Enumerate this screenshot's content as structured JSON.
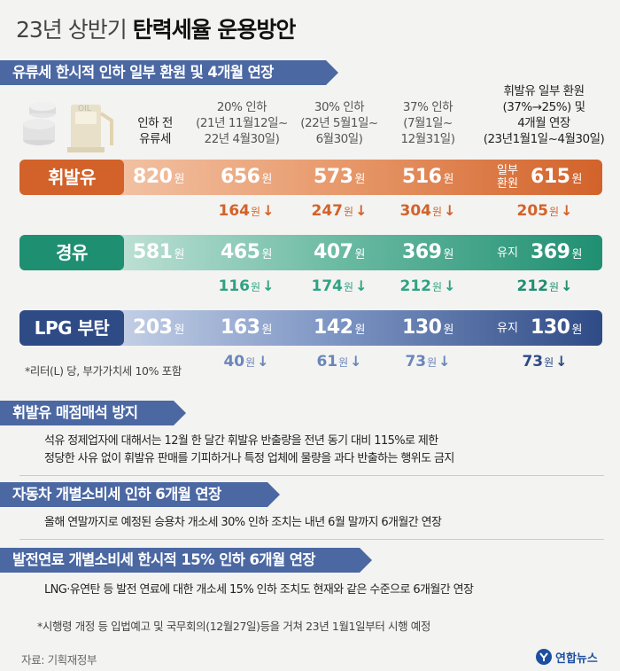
{
  "title": {
    "light": "23년 상반기",
    "bold": "탄력세율 운용방안"
  },
  "section1": {
    "heading": "유류세 한시적 인하 일부 환원 및 4개월 연장"
  },
  "columns": {
    "base": [
      "인하 전",
      "유류세"
    ],
    "c1": [
      "20% 인하",
      "(21년 11월12일~",
      "22년 4월30일)"
    ],
    "c2": [
      "30% 인하",
      "(22년 5월1일~",
      "6월30일)"
    ],
    "c3": [
      "37% 인하",
      "(7월1일~",
      "12월31일)"
    ],
    "c4": [
      "휘발유 일부 환원",
      "(37%→25%) 및",
      "4개월 연장",
      "(23년1월1일~4월30일)"
    ]
  },
  "unit": "원",
  "arrow": "↓",
  "rows": [
    {
      "name": "휘발유",
      "base": "820",
      "c1": "656",
      "c2": "573",
      "c3": "516",
      "c4_pre": [
        "일부",
        "환원"
      ],
      "c4": "615",
      "d1": "164",
      "d2": "247",
      "d3": "304",
      "d4": "205"
    },
    {
      "name": "경유",
      "base": "581",
      "c1": "465",
      "c2": "407",
      "c3": "369",
      "c4_pre": [
        "유지"
      ],
      "c4": "369",
      "d1": "116",
      "d2": "174",
      "d3": "212",
      "d4": "212"
    },
    {
      "name": "LPG 부탄",
      "base": "203",
      "c1": "163",
      "c2": "142",
      "c3": "130",
      "c4_pre": [
        "유지"
      ],
      "c4": "130",
      "d1": "40",
      "d2": "61",
      "d3": "73",
      "d4": "73"
    }
  ],
  "colors": {
    "gasoline": "#d2622a",
    "diesel": "#1f8f72",
    "lpg": "#2f4b86",
    "header": "#4b68a3"
  },
  "footnote1": "*리터(L) 당, 부가가치세 10% 포함",
  "section2": {
    "heading": "휘발유 매점매석 방지",
    "lines": [
      "석유 정제업자에 대해서는 12월 한 달간 휘발유 반출량을 전년 동기 대비 115%로 제한",
      "정당한 사유 없이 휘발유 판매를 기피하거나 특정 업체에 물량을 과다 반출하는 행위도 금지"
    ]
  },
  "section3": {
    "heading": "자동차 개별소비세 인하 6개월 연장",
    "lines": [
      "올해 연말까지로 예정된 승용차 개소세 30% 인하 조치는 내년 6월 말까지 6개월간 연장"
    ]
  },
  "section4": {
    "heading": "발전연료 개별소비세 한시적 15% 인하 6개월 연장",
    "lines": [
      "LNG·유연탄 등 발전 연료에 대한 개소세 15% 인하 조치도 현재와 같은 수준으로 6개월간 연장"
    ]
  },
  "footnote2": "*시행령 개정 등 입법예고 및 국무회의(12월27일)등을 거쳐 23년 1월1일부터 시행 예정",
  "source": "자료: 기획재정부",
  "logo": "연합뉴스"
}
